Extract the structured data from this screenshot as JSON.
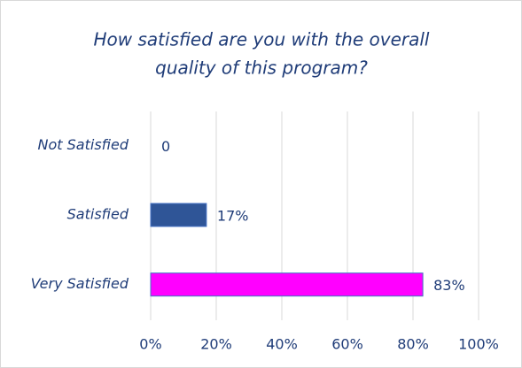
{
  "chart_data": {
    "type": "hbar",
    "title": [
      "How satisfied are you with the overall",
      "quality of this program?"
    ],
    "categories": [
      "Not Satisfied",
      "Satisfied",
      "Very Satisfied"
    ],
    "values": [
      0,
      17,
      83
    ],
    "value_labels": [
      "0",
      "17%",
      "83%"
    ],
    "colors": [
      null,
      "#2f5597",
      "#ff00ff"
    ],
    "xlim": [
      0,
      100
    ],
    "xticks": [
      {
        "value": 0,
        "label": "0%"
      },
      {
        "value": 20,
        "label": "20%"
      },
      {
        "value": 40,
        "label": "40%"
      },
      {
        "value": 60,
        "label": "60%"
      },
      {
        "value": 80,
        "label": "80%"
      },
      {
        "value": 100,
        "label": "100%"
      }
    ],
    "grid": true
  }
}
